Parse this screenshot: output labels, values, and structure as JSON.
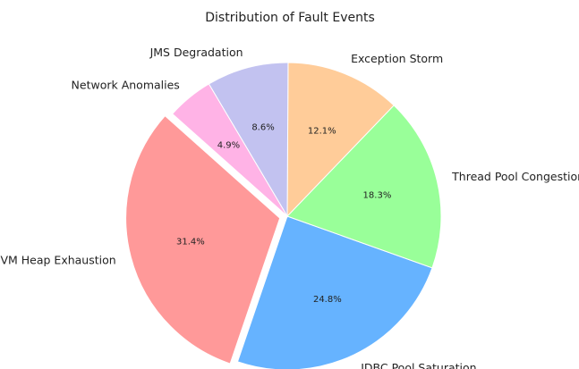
{
  "chart_data": {
    "type": "pie",
    "title": "Distribution of Fault Events",
    "categories": [
      "JVM Heap Exhaustion",
      "JDBC Pool Saturation",
      "Thread Pool Congestion",
      "Exception Storm",
      "JMS Degradation",
      "Network Anomalies"
    ],
    "values": [
      31.4,
      24.8,
      18.3,
      12.1,
      8.6,
      4.9
    ],
    "value_labels": [
      "31.4%",
      "24.8%",
      "18.3%",
      "12.1%",
      "8.6%",
      "4.9%"
    ],
    "colors": [
      "#ff9999",
      "#66b3ff",
      "#99ff99",
      "#ffcc99",
      "#c2c2f0",
      "#ffb3e6"
    ],
    "explode": [
      0.05,
      0,
      0,
      0,
      0,
      0
    ]
  }
}
